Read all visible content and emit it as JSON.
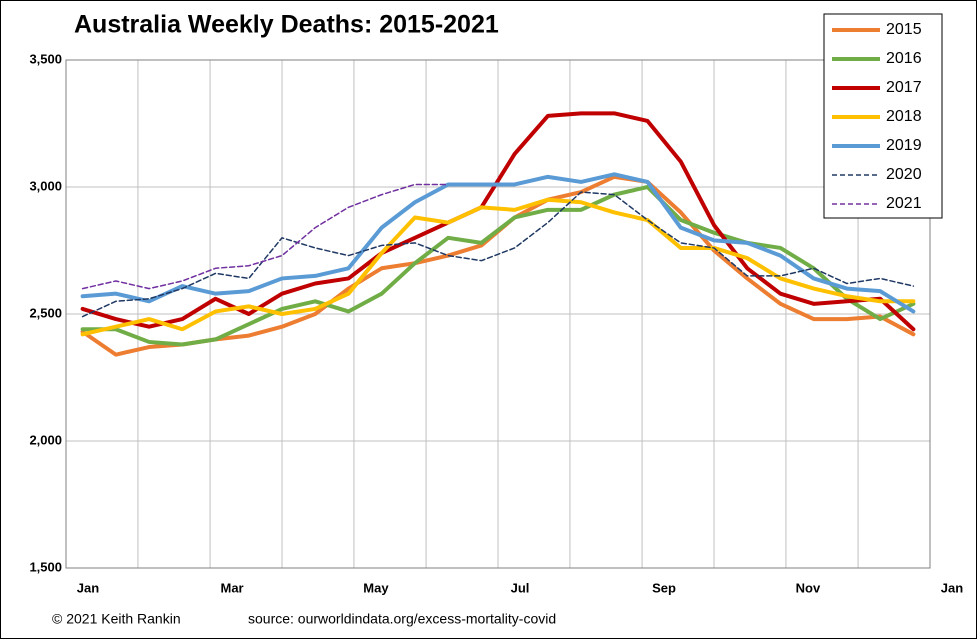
{
  "chart_data": {
    "type": "line",
    "title": "Australia Weekly Deaths: 2015-2021",
    "footer_left": "© 2021 Keith Rankin",
    "footer_right": "source:  ourworldindata.org/excess-mortality-covid",
    "x": [
      1,
      3,
      5,
      7,
      9,
      11,
      13,
      15,
      17,
      19,
      21,
      23,
      25,
      27,
      29,
      31,
      33,
      35,
      37,
      39,
      41,
      43,
      45,
      47,
      49,
      51
    ],
    "xlim": [
      0,
      52
    ],
    "xticks": [
      {
        "value": 0,
        "label": "Jan"
      },
      {
        "value": 4.33,
        "label": null
      },
      {
        "value": 8.67,
        "label": "Mar"
      },
      {
        "value": 13,
        "label": null
      },
      {
        "value": 17.33,
        "label": "May"
      },
      {
        "value": 21.67,
        "label": null
      },
      {
        "value": 26,
        "label": "Jul"
      },
      {
        "value": 30.33,
        "label": null
      },
      {
        "value": 34.67,
        "label": "Sep"
      },
      {
        "value": 39,
        "label": null
      },
      {
        "value": 43.33,
        "label": "Nov"
      },
      {
        "value": 47.67,
        "label": null
      },
      {
        "value": 52,
        "label": "Jan"
      }
    ],
    "ylim": [
      1500,
      3500
    ],
    "yticks": [
      {
        "value": 1500,
        "label": "1,500"
      },
      {
        "value": 2000,
        "label": "2,000"
      },
      {
        "value": 2500,
        "label": "2,500"
      },
      {
        "value": 3000,
        "label": "3,000"
      },
      {
        "value": 3500,
        "label": "3,500"
      }
    ],
    "grid": true,
    "legend": "top-right",
    "series": [
      {
        "name": "2015",
        "color": "#ED7D31",
        "dashed": false,
        "values": [
          2430,
          2340,
          2370,
          2380,
          2400,
          2415,
          2450,
          2500,
          2600,
          2680,
          2700,
          2730,
          2770,
          2880,
          2950,
          2980,
          3040,
          3020,
          2900,
          2750,
          2640,
          2540,
          2480,
          2480,
          2490,
          2420
        ]
      },
      {
        "name": "2016",
        "color": "#70AD47",
        "dashed": false,
        "values": [
          2440,
          2440,
          2390,
          2380,
          2400,
          2460,
          2520,
          2550,
          2510,
          2580,
          2700,
          2800,
          2780,
          2880,
          2910,
          2910,
          2970,
          3000,
          2870,
          2820,
          2780,
          2760,
          2680,
          2560,
          2480,
          2540
        ]
      },
      {
        "name": "2017",
        "color": "#C00000",
        "dashed": false,
        "values": [
          2520,
          2480,
          2450,
          2480,
          2560,
          2500,
          2580,
          2620,
          2640,
          2740,
          2800,
          2860,
          2920,
          3130,
          3280,
          3290,
          3290,
          3260,
          3100,
          2850,
          2680,
          2580,
          2540,
          2550,
          2560,
          2440
        ]
      },
      {
        "name": "2018",
        "color": "#FFC000",
        "dashed": false,
        "values": [
          2420,
          2450,
          2480,
          2440,
          2510,
          2530,
          2500,
          2520,
          2580,
          2740,
          2880,
          2860,
          2920,
          2910,
          2950,
          2940,
          2900,
          2870,
          2760,
          2760,
          2720,
          2640,
          2600,
          2570,
          2550,
          2550
        ]
      },
      {
        "name": "2019",
        "color": "#5B9BD5",
        "dashed": false,
        "values": [
          2570,
          2580,
          2550,
          2610,
          2580,
          2590,
          2640,
          2650,
          2680,
          2840,
          2940,
          3010,
          3010,
          3010,
          3040,
          3020,
          3050,
          3020,
          2840,
          2790,
          2780,
          2730,
          2640,
          2600,
          2590,
          2510
        ]
      },
      {
        "name": "2020",
        "color": "#1F3864",
        "dashed": true,
        "values": [
          2490,
          2550,
          2560,
          2600,
          2660,
          2640,
          2800,
          2760,
          2730,
          2770,
          2780,
          2730,
          2710,
          2760,
          2860,
          2980,
          2970,
          2870,
          2780,
          2760,
          2650,
          2650,
          2680,
          2620,
          2640,
          2610
        ]
      },
      {
        "name": "2021",
        "color": "#7030A0",
        "dashed": true,
        "values": [
          2600,
          2630,
          2600,
          2630,
          2680,
          2690,
          2730,
          2840,
          2920,
          2970,
          3010,
          3010,
          null,
          null,
          null,
          null,
          null,
          null,
          null,
          null,
          null,
          null,
          null,
          null,
          null,
          null
        ]
      }
    ]
  }
}
